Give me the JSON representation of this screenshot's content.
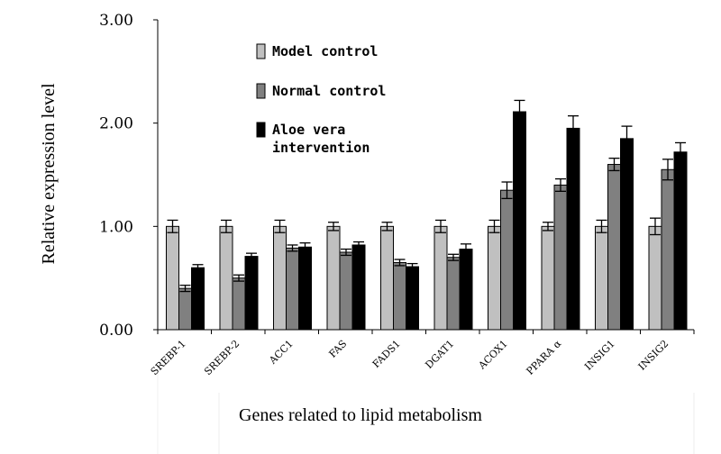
{
  "chart_data": {
    "type": "bar",
    "title": "",
    "xlabel": "Genes related to lipid metabolism",
    "ylabel": "Relative expression level",
    "ylim": [
      0,
      3
    ],
    "yticks": [
      "0.00",
      "1.00",
      "2.00",
      "3.00"
    ],
    "grid": false,
    "legend_position": "top-left",
    "error_bars": true,
    "categories": [
      "SREBP-1",
      "SREBP-2",
      "ACC1",
      "FAS",
      "FADS1",
      "DGAT1",
      "ACOX1",
      "PPARA α",
      "INSIG1",
      "INSIG2"
    ],
    "series": [
      {
        "name": "Model control",
        "color": "#c0c0c0",
        "values": [
          1.0,
          1.0,
          1.0,
          1.0,
          1.0,
          1.0,
          1.0,
          1.0,
          1.0,
          1.0
        ],
        "errors": [
          0.06,
          0.06,
          0.06,
          0.04,
          0.04,
          0.06,
          0.06,
          0.04,
          0.06,
          0.08
        ]
      },
      {
        "name": "Normal control",
        "color": "#808080",
        "values": [
          0.4,
          0.5,
          0.79,
          0.75,
          0.65,
          0.7,
          1.35,
          1.4,
          1.6,
          1.55
        ],
        "errors": [
          0.03,
          0.03,
          0.03,
          0.03,
          0.03,
          0.03,
          0.08,
          0.06,
          0.06,
          0.1
        ]
      },
      {
        "name": "Aloe vera\nintervention",
        "color": "#000000",
        "values": [
          0.6,
          0.71,
          0.8,
          0.82,
          0.61,
          0.78,
          2.11,
          1.95,
          1.85,
          1.72
        ],
        "errors": [
          0.03,
          0.03,
          0.04,
          0.03,
          0.03,
          0.05,
          0.11,
          0.12,
          0.12,
          0.09
        ]
      }
    ]
  }
}
